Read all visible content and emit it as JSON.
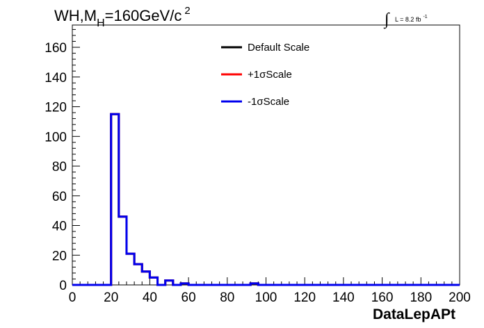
{
  "chart_data": {
    "type": "line",
    "style": "step-histogram",
    "title_parts": {
      "main": "WH,M",
      "subscript": "H",
      "after": "=160GeV/c",
      "superscript": "2"
    },
    "lumi_label": {
      "symbol": "∫",
      "text": "L = 8.2 fb",
      "superscript": "-1"
    },
    "xlabel": "DataLepAPt",
    "ylabel": "",
    "xlim": [
      0,
      200
    ],
    "ylim": [
      0,
      175
    ],
    "x_ticks": [
      "0",
      "20",
      "40",
      "60",
      "80",
      "100",
      "120",
      "140",
      "160",
      "180",
      "200"
    ],
    "y_ticks": [
      "0",
      "20",
      "40",
      "60",
      "80",
      "100",
      "120",
      "140",
      "160"
    ],
    "bin_width": 4,
    "bin_edges_start": 0,
    "grid": false,
    "legend_position": "top-center",
    "series": [
      {
        "name": "Default Scale",
        "color": "#000000",
        "values": [
          0,
          0,
          0,
          0,
          0,
          115,
          46,
          21,
          14,
          9,
          5,
          0,
          3,
          0,
          1,
          0,
          0,
          0,
          0,
          0,
          0,
          0,
          0,
          1,
          0,
          0,
          0,
          0,
          0,
          0,
          0,
          0,
          0,
          0,
          0,
          0,
          0,
          0,
          0,
          0,
          0,
          0,
          0,
          0,
          0,
          0,
          0,
          0,
          0,
          0
        ]
      },
      {
        "name": "+1σScale",
        "color": "#ff0000",
        "values": [
          0,
          0,
          0,
          0,
          0,
          115,
          46,
          21,
          14,
          9,
          5,
          0,
          3,
          0,
          1,
          0,
          0,
          0,
          0,
          0,
          0,
          0,
          0,
          1,
          0,
          0,
          0,
          0,
          0,
          0,
          0,
          0,
          0,
          0,
          0,
          0,
          0,
          0,
          0,
          0,
          0,
          0,
          0,
          0,
          0,
          0,
          0,
          0,
          0,
          0
        ]
      },
      {
        "name": "-1σScale",
        "color": "#0000ee",
        "values": [
          0,
          0,
          0,
          0,
          0,
          115,
          46,
          21,
          14,
          9,
          5,
          0,
          3,
          0,
          1,
          0,
          0,
          0,
          0,
          0,
          0,
          0,
          0,
          1,
          0,
          0,
          0,
          0,
          0,
          0,
          0,
          0,
          0,
          0,
          0,
          0,
          0,
          0,
          0,
          0,
          0,
          0,
          0,
          0,
          0,
          0,
          0,
          0,
          0,
          0
        ]
      }
    ]
  }
}
